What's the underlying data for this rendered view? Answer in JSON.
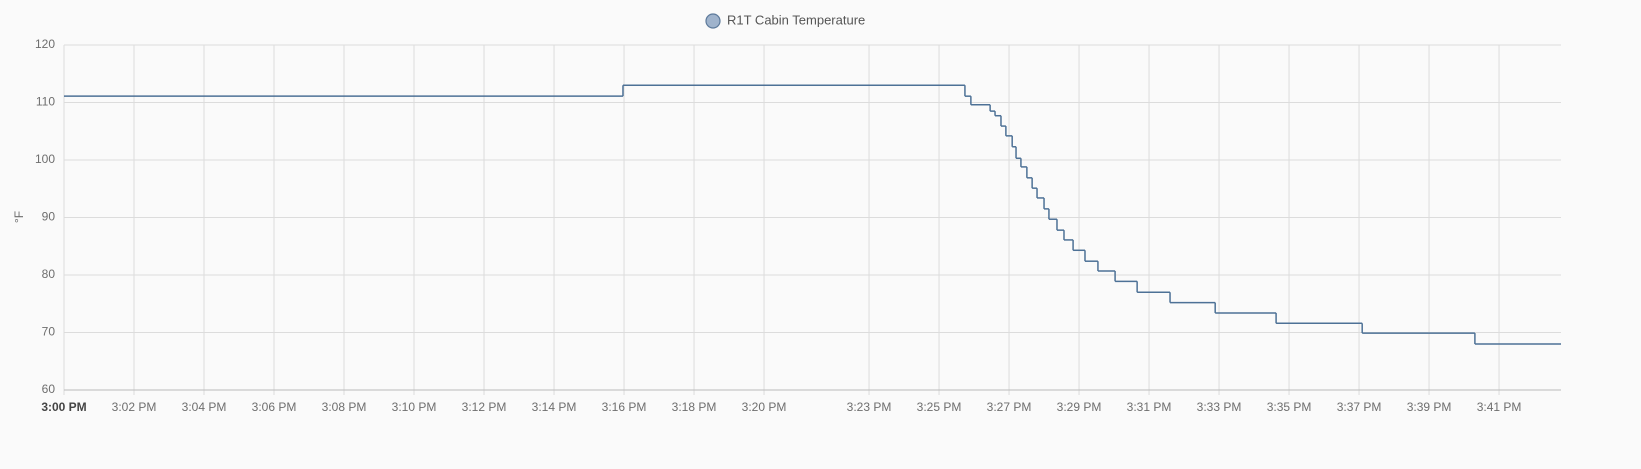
{
  "chart_data": {
    "type": "line",
    "stepped": true,
    "series": [
      {
        "name": "R1T Cabin Temperature",
        "color": "#4d7196",
        "x": [
          0,
          15.97,
          25.74,
          25.91,
          26.46,
          26.6,
          26.77,
          26.91,
          27.09,
          27.2,
          27.34,
          27.51,
          27.66,
          27.8,
          28.0,
          28.14,
          28.37,
          28.57,
          28.83,
          29.17,
          29.54,
          30.03,
          30.66,
          31.6,
          32.89,
          34.63,
          37.09,
          40.31
        ],
        "values": [
          111.1,
          113.0,
          111.1,
          109.6,
          108.5,
          107.7,
          105.9,
          104.2,
          102.3,
          100.3,
          98.8,
          96.9,
          95.1,
          93.4,
          91.5,
          89.7,
          87.8,
          86.1,
          84.3,
          82.4,
          80.7,
          78.9,
          77.0,
          75.2,
          73.4,
          71.6,
          69.9,
          68.0
        ]
      }
    ],
    "y_label": "°F",
    "ylim": [
      60,
      120
    ],
    "yticks": [
      60,
      70,
      80,
      90,
      100,
      110,
      120
    ],
    "xlim": [
      0,
      42.77
    ],
    "xticks": [
      {
        "value": 0,
        "label": "3:00 PM"
      },
      {
        "value": 2,
        "label": "3:02 PM"
      },
      {
        "value": 4,
        "label": "3:04 PM"
      },
      {
        "value": 6,
        "label": "3:06 PM"
      },
      {
        "value": 8,
        "label": "3:08 PM"
      },
      {
        "value": 10,
        "label": "3:10 PM"
      },
      {
        "value": 12,
        "label": "3:12 PM"
      },
      {
        "value": 14,
        "label": "3:14 PM"
      },
      {
        "value": 16,
        "label": "3:16 PM"
      },
      {
        "value": 18,
        "label": "3:18 PM"
      },
      {
        "value": 20,
        "label": "3:20 PM"
      },
      {
        "value": 23,
        "label": "3:23 PM"
      },
      {
        "value": 25,
        "label": "3:25 PM"
      },
      {
        "value": 27,
        "label": "3:27 PM"
      },
      {
        "value": 29,
        "label": "3:29 PM"
      },
      {
        "value": 31,
        "label": "3:31 PM"
      },
      {
        "value": 33,
        "label": "3:33 PM"
      },
      {
        "value": 35,
        "label": "3:35 PM"
      },
      {
        "value": 37,
        "label": "3:37 PM"
      },
      {
        "value": 39,
        "label": "3:39 PM"
      },
      {
        "value": 41,
        "label": "3:41 PM"
      }
    ],
    "grid": true
  }
}
